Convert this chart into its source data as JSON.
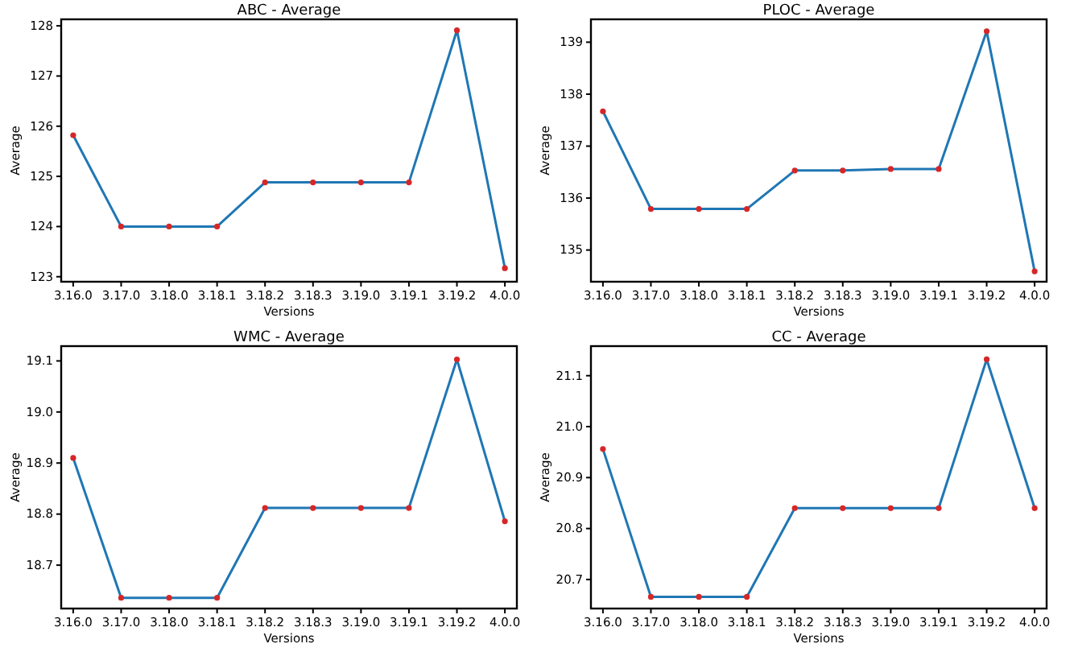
{
  "chart_data": [
    {
      "type": "line",
      "title": "ABC - Average",
      "xlabel": "Versions",
      "ylabel": "Average",
      "categories": [
        "3.16.0",
        "3.17.0",
        "3.18.0",
        "3.18.1",
        "3.18.2",
        "3.18.3",
        "3.19.0",
        "3.19.1",
        "3.19.2",
        "4.0.0"
      ],
      "series": [
        {
          "color": "#1f77b4",
          "colors": [
            "#d62728",
            "#d62728",
            "#d62728",
            "#d62728",
            "#d62728",
            "#d62728",
            "#d62728",
            "#d62728",
            "#d62728",
            "#d62728"
          ],
          "values": [
            125.82,
            124.0,
            124.0,
            124.0,
            124.88,
            124.88,
            124.88,
            124.88,
            127.91,
            123.17
          ]
        }
      ],
      "ylim": [
        122.9,
        128.13
      ],
      "yticks": [
        123,
        124,
        125,
        126,
        127,
        128
      ],
      "marker": "circle",
      "line_style": "solid",
      "grid": false
    },
    {
      "type": "line",
      "title": "PLOC - Average",
      "xlabel": "Versions",
      "ylabel": "Average",
      "categories": [
        "3.16.0",
        "3.17.0",
        "3.18.0",
        "3.18.1",
        "3.18.2",
        "3.18.3",
        "3.19.0",
        "3.19.1",
        "3.19.2",
        "4.0.0"
      ],
      "series": [
        {
          "color": "#1f77b4",
          "colors": [
            "#d62728",
            "#d62728",
            "#d62728",
            "#d62728",
            "#d62728",
            "#d62728",
            "#d62728",
            "#d62728",
            "#d62728",
            "#d62728"
          ],
          "values": [
            137.67,
            135.79,
            135.79,
            135.79,
            136.53,
            136.53,
            136.56,
            136.56,
            139.21,
            134.59
          ]
        }
      ],
      "ylim": [
        134.39,
        139.44
      ],
      "yticks": [
        135,
        136,
        137,
        138,
        139
      ],
      "marker": "circle",
      "line_style": "solid",
      "grid": false
    },
    {
      "type": "line",
      "title": "WMC - Average",
      "xlabel": "Versions",
      "ylabel": "Average",
      "categories": [
        "3.16.0",
        "3.17.0",
        "3.18.0",
        "3.18.1",
        "3.18.2",
        "3.18.3",
        "3.19.0",
        "3.19.1",
        "3.19.2",
        "4.0.0"
      ],
      "series": [
        {
          "color": "#1f77b4",
          "colors": [
            "#d62728",
            "#d62728",
            "#d62728",
            "#d62728",
            "#d62728",
            "#d62728",
            "#d62728",
            "#d62728",
            "#d62728",
            "#d62728"
          ],
          "values": [
            18.91,
            18.636,
            18.636,
            18.636,
            18.812,
            18.812,
            18.812,
            18.812,
            19.103,
            18.786
          ]
        }
      ],
      "ylim": [
        18.615,
        19.129
      ],
      "yticks": [
        {
          "value": 18.7,
          "label": "18.7"
        },
        {
          "value": 18.8,
          "label": "18.8"
        },
        {
          "value": 18.9,
          "label": "18.9"
        },
        {
          "value": 19.0,
          "label": "19.0"
        },
        {
          "value": 19.1,
          "label": "19.1"
        }
      ],
      "marker": "circle",
      "line_style": "solid",
      "grid": false
    },
    {
      "type": "line",
      "title": "CC - Average",
      "xlabel": "Versions",
      "ylabel": "Average",
      "categories": [
        "3.16.0",
        "3.17.0",
        "3.18.0",
        "3.18.1",
        "3.18.2",
        "3.18.3",
        "3.19.0",
        "3.19.1",
        "3.19.2",
        "4.0.0"
      ],
      "series": [
        {
          "color": "#1f77b4",
          "colors": [
            "#d62728",
            "#d62728",
            "#d62728",
            "#d62728",
            "#d62728",
            "#d62728",
            "#d62728",
            "#d62728",
            "#d62728",
            "#d62728"
          ],
          "values": [
            20.956,
            20.666,
            20.666,
            20.666,
            20.84,
            20.84,
            20.84,
            20.84,
            21.132,
            20.84
          ]
        }
      ],
      "ylim": [
        20.643,
        21.158
      ],
      "yticks": [
        {
          "value": 20.7,
          "label": "20.7"
        },
        {
          "value": 20.8,
          "label": "20.8"
        },
        {
          "value": 20.9,
          "label": "20.9"
        },
        {
          "value": 21.0,
          "label": "21.0"
        },
        {
          "value": 21.1,
          "label": "21.1"
        }
      ],
      "marker": "circle",
      "line_style": "solid",
      "grid": false
    }
  ]
}
